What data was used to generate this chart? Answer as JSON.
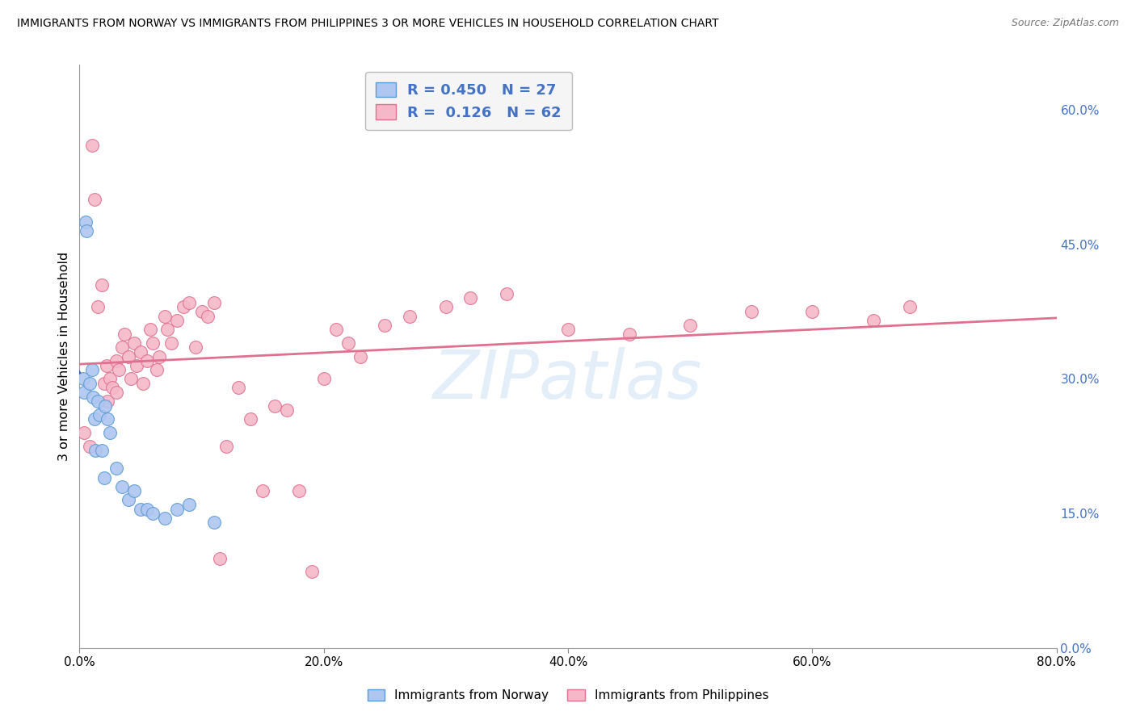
{
  "title": "IMMIGRANTS FROM NORWAY VS IMMIGRANTS FROM PHILIPPINES 3 OR MORE VEHICLES IN HOUSEHOLD CORRELATION CHART",
  "source": "Source: ZipAtlas.com",
  "ylabel": "3 or more Vehicles in Household",
  "xlim": [
    0.0,
    80.0
  ],
  "ylim": [
    0.0,
    65.0
  ],
  "yticks": [
    0.0,
    15.0,
    30.0,
    45.0,
    60.0
  ],
  "xticks": [
    0.0,
    20.0,
    40.0,
    60.0,
    80.0
  ],
  "norway_color": "#aec6f0",
  "norway_edge": "#5b9bd5",
  "philippines_color": "#f4b8c8",
  "philippines_edge": "#e07090",
  "norway_R": 0.45,
  "norway_N": 27,
  "philippines_R": 0.126,
  "philippines_N": 62,
  "norway_x": [
    0.3,
    0.4,
    0.5,
    0.6,
    0.8,
    1.0,
    1.1,
    1.2,
    1.3,
    1.5,
    1.6,
    1.8,
    2.0,
    2.1,
    2.3,
    2.5,
    3.0,
    3.5,
    4.0,
    4.5,
    5.0,
    5.5,
    6.0,
    7.0,
    8.0,
    9.0,
    11.0
  ],
  "norway_y": [
    30.0,
    28.5,
    47.5,
    46.5,
    29.5,
    31.0,
    28.0,
    25.5,
    22.0,
    27.5,
    26.0,
    22.0,
    19.0,
    27.0,
    25.5,
    24.0,
    20.0,
    18.0,
    16.5,
    17.5,
    15.5,
    15.5,
    15.0,
    14.5,
    15.5,
    16.0,
    14.0
  ],
  "philippines_x": [
    0.4,
    0.8,
    1.0,
    1.2,
    1.5,
    1.8,
    2.0,
    2.2,
    2.3,
    2.5,
    2.7,
    3.0,
    3.0,
    3.2,
    3.5,
    3.7,
    4.0,
    4.2,
    4.5,
    4.7,
    5.0,
    5.2,
    5.5,
    5.8,
    6.0,
    6.3,
    6.5,
    7.0,
    7.2,
    7.5,
    8.0,
    8.5,
    9.0,
    9.5,
    10.0,
    10.5,
    11.0,
    11.5,
    12.0,
    13.0,
    14.0,
    15.0,
    16.0,
    17.0,
    18.0,
    19.0,
    20.0,
    21.0,
    22.0,
    23.0,
    25.0,
    27.0,
    30.0,
    32.0,
    35.0,
    40.0,
    45.0,
    50.0,
    55.0,
    60.0,
    65.0,
    68.0
  ],
  "philippines_y": [
    24.0,
    22.5,
    56.0,
    50.0,
    38.0,
    40.5,
    29.5,
    31.5,
    27.5,
    30.0,
    29.0,
    32.0,
    28.5,
    31.0,
    33.5,
    35.0,
    32.5,
    30.0,
    34.0,
    31.5,
    33.0,
    29.5,
    32.0,
    35.5,
    34.0,
    31.0,
    32.5,
    37.0,
    35.5,
    34.0,
    36.5,
    38.0,
    38.5,
    33.5,
    37.5,
    37.0,
    38.5,
    10.0,
    22.5,
    29.0,
    25.5,
    17.5,
    27.0,
    26.5,
    17.5,
    8.5,
    30.0,
    35.5,
    34.0,
    32.5,
    36.0,
    37.0,
    38.0,
    39.0,
    39.5,
    35.5,
    35.0,
    36.0,
    37.5,
    37.5,
    36.5,
    38.0
  ],
  "watermark": "ZIPatlas",
  "background_color": "#ffffff",
  "grid_color": "#d0d0d0",
  "right_axis_color": "#4472c4",
  "legend_box_color": "#f5f5f5",
  "norway_line_color": "#2b5eb8",
  "philippines_line_color": "#e07090"
}
